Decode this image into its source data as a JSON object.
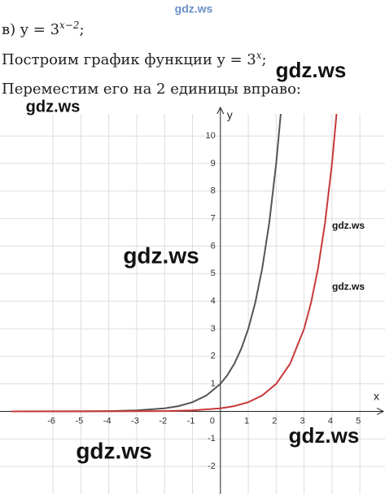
{
  "lines": [
    {
      "prefix": "в) y = 3",
      "sup": "x−2",
      "suffix": ";"
    },
    {
      "prefix": "Построим график функции y = 3",
      "sup": "x",
      "suffix": ";"
    },
    {
      "prefix": "Переместим его на 2 единицы вправо:"
    }
  ],
  "watermarks": [
    "gdz.ws",
    "gdz.ws",
    "gdz.ws",
    "gdz.ws",
    "gdz.ws",
    "gdz.ws",
    "gdz.ws",
    "gdz.ws"
  ],
  "chart_data": {
    "type": "line",
    "x_label": "x",
    "y_label": "y",
    "xlim": [
      -7.9,
      5.9
    ],
    "ylim": [
      -3,
      10.8
    ],
    "xticks": [
      -6,
      -5,
      -4,
      -3,
      -2,
      -1,
      0,
      1,
      2,
      3,
      4,
      5
    ],
    "yticks": [
      -2,
      -1,
      1,
      2,
      3,
      4,
      5,
      6,
      7,
      8,
      9,
      10
    ],
    "grid": true,
    "series": [
      {
        "color": "#555555",
        "x": [
          -7.5,
          -6,
          -5,
          -4,
          -3,
          -2,
          -1.5,
          -1,
          -0.5,
          0,
          0.25,
          0.5,
          0.75,
          1,
          1.25,
          1.5,
          1.75,
          2,
          2.2
        ],
        "values": [
          0.0003,
          0.0014,
          0.004,
          0.012,
          0.037,
          0.111,
          0.192,
          0.333,
          0.577,
          1,
          1.316,
          1.732,
          2.28,
          3,
          3.948,
          5.196,
          6.839,
          9,
          11.21
        ]
      },
      {
        "color": "#c8393b",
        "x": [
          -7.5,
          -4,
          -2,
          -1,
          0,
          0.5,
          1,
          1.5,
          2,
          2.5,
          3,
          3.25,
          3.5,
          3.75,
          4,
          4.2
        ],
        "values": [
          3e-05,
          0.0014,
          0.012,
          0.037,
          0.111,
          0.192,
          0.333,
          0.577,
          1,
          1.732,
          3,
          3.948,
          5.196,
          6.839,
          9,
          11.21
        ]
      }
    ]
  }
}
